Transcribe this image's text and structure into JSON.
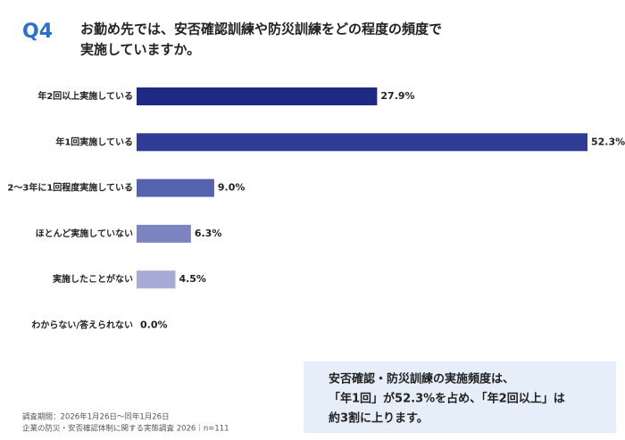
{
  "chart_data": {
    "type": "bar",
    "label": "Q4",
    "title": [
      "お勤め先では、安否確認訓練や防災訓練をどの程度の頻度で",
      "実施していますか。"
    ],
    "categories": [
      "年2回以上実施している",
      "年1回実施している",
      "2～3年に1回程度実施している",
      "ほとんど実施していない",
      "実施したことがない",
      "わからない/答えられない"
    ],
    "values": [
      27.9,
      52.3,
      9.0,
      6.3,
      4.5,
      0.0
    ],
    "value_labels": [
      "27.9%",
      "52.3%",
      "9.0%",
      "6.3%",
      "4.5%",
      "0.0%"
    ],
    "colors": [
      "#1f2a85",
      "#2f3d97",
      "#5562ad",
      "#7b84c0",
      "#a5abd6",
      "#c8cce6"
    ],
    "callout": [
      "安否確認・防災訓練の実施頻度は、",
      "「年1回」が52.3%を占め、「年2回以上」は",
      "約3割に上ります。"
    ],
    "footnote": [
      "調査期間：2026年1月26日～同年1月26日",
      "企業の防災・安否確認体制に関する実態調査 2026｜n=111"
    ]
  }
}
